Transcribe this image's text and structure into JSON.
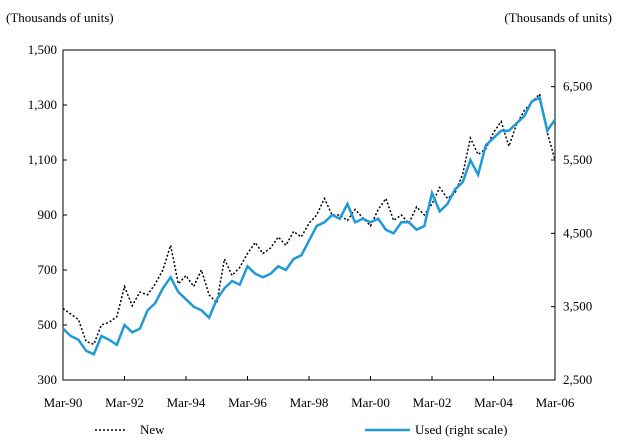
{
  "chart_data": {
    "type": "line",
    "ylabel": "(Thousands of units)",
    "y2label": "(Thousands of units)",
    "categories": [
      "Mar-90",
      null,
      null,
      null,
      null,
      null,
      null,
      null,
      "Mar-92",
      null,
      null,
      null,
      null,
      null,
      null,
      null,
      "Mar-94",
      null,
      null,
      null,
      null,
      null,
      null,
      null,
      "Mar-96",
      null,
      null,
      null,
      null,
      null,
      null,
      null,
      "Mar-98",
      null,
      null,
      null,
      null,
      null,
      null,
      null,
      "Mar-00",
      null,
      null,
      null,
      null,
      null,
      null,
      null,
      "Mar-02",
      null,
      null,
      null,
      null,
      null,
      null,
      null,
      "Mar-04",
      null,
      null,
      null,
      null,
      null,
      null,
      null,
      "Mar-06"
    ],
    "ylim": [
      300,
      1500
    ],
    "yticks": [
      300,
      500,
      700,
      900,
      {
        "value": 1100,
        "label": "1,100"
      },
      {
        "value": 1300,
        "label": "1,300"
      },
      {
        "value": 1500,
        "label": "1,500"
      }
    ],
    "y2lim": [
      2500,
      7000
    ],
    "y2ticks": [
      {
        "value": 2500,
        "label": "2,500"
      },
      {
        "value": 3500,
        "label": "3,500"
      },
      {
        "value": 4500,
        "label": "4,500"
      },
      {
        "value": 5500,
        "label": "5,500"
      },
      {
        "value": 6500,
        "label": "6,500"
      }
    ],
    "series": [
      {
        "name": "New",
        "color": "#000000",
        "style": "dotted",
        "values": [
          560,
          540,
          520,
          440,
          430,
          500,
          510,
          530,
          640,
          570,
          620,
          610,
          650,
          700,
          790,
          650,
          680,
          640,
          700,
          610,
          580,
          740,
          680,
          710,
          760,
          800,
          760,
          780,
          820,
          790,
          840,
          820,
          870,
          900,
          960,
          900,
          900,
          880,
          920,
          890,
          860,
          920,
          960,
          880,
          900,
          870,
          930,
          900,
          940,
          1000,
          960,
          980,
          1050,
          1180,
          1120,
          1140,
          1200,
          1240,
          1150,
          1230,
          1280,
          1310,
          1340,
          1200,
          1100
        ]
      },
      {
        "name": "Used (right scale)",
        "color": "#1f9ad6",
        "style": "solid",
        "axis": "y2",
        "values": [
          3200,
          3100,
          3050,
          2900,
          2850,
          3100,
          3050,
          2980,
          3250,
          3150,
          3200,
          3450,
          3550,
          3750,
          3900,
          3700,
          3600,
          3500,
          3450,
          3350,
          3600,
          3750,
          3850,
          3800,
          4050,
          3950,
          3900,
          3950,
          4050,
          4000,
          4150,
          4200,
          4400,
          4600,
          4650,
          4750,
          4700,
          4900,
          4650,
          4700,
          4650,
          4700,
          4550,
          4500,
          4650,
          4650,
          4550,
          4600,
          5050,
          4800,
          4900,
          5100,
          5200,
          5500,
          5300,
          5700,
          5800,
          5900,
          5900,
          6000,
          6100,
          6300,
          6350,
          5900,
          6050
        ]
      }
    ]
  }
}
